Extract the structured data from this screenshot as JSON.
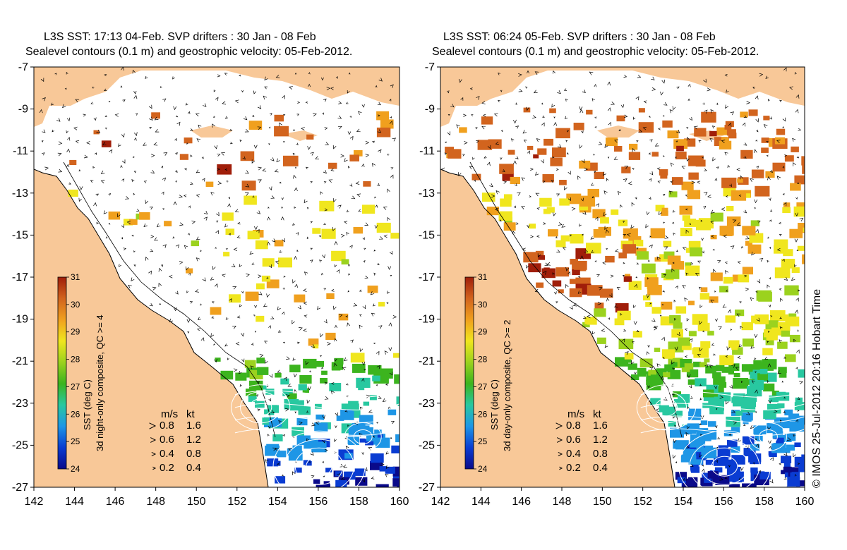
{
  "panels": [
    {
      "id": "left",
      "title_line1": "L3S SST: 17:13 04-Feb. SVP drifters : 30 Jan - 08 Feb",
      "title_line2": "Sealevel contours (0.1 m) and geostrophic velocity: 05-Feb-2012.",
      "colorbar_label": "SST (deg C)",
      "colorbar_sublabel": "3d night-only composite, QC >= 4",
      "coverage": "night"
    },
    {
      "id": "right",
      "title_line1": "L3S SST: 06:24 05-Feb. SVP drifters : 30 Jan - 08 Feb",
      "title_line2": "Sealevel contours (0.1 m) and geostrophic velocity: 05-Feb-2012.",
      "colorbar_label": "SST (deg C)",
      "colorbar_sublabel": "3d day-only composite, QC >= 2",
      "coverage": "day"
    }
  ],
  "axes": {
    "lon_ticks": [
      "142",
      "144",
      "146",
      "148",
      "150",
      "152",
      "154",
      "156",
      "158",
      "160"
    ],
    "lat_ticks": [
      "-7",
      "-9",
      "-11",
      "-13",
      "-15",
      "-17",
      "-19",
      "-21",
      "-23",
      "-25",
      "-27"
    ],
    "lon_range": [
      142,
      160
    ],
    "lat_range": [
      -27,
      -7
    ]
  },
  "colorbar": {
    "ticks": [
      "31",
      "30",
      "29",
      "28",
      "27",
      "26",
      "25",
      "24"
    ],
    "range": [
      24,
      31
    ],
    "colors": [
      "#0a0a8a",
      "#0a3cd2",
      "#1e96e6",
      "#28c8a0",
      "#3cb41e",
      "#9bd21e",
      "#f0e61e",
      "#f0a01e",
      "#d2641e",
      "#a01e0a"
    ]
  },
  "speed_legend": {
    "header_ms": "m/s",
    "header_kt": "kt",
    "rows": [
      {
        "ms": "0.8",
        "kt": "1.6"
      },
      {
        "ms": "0.6",
        "kt": "1.2"
      },
      {
        "ms": "0.4",
        "kt": "0.8"
      },
      {
        "ms": "0.2",
        "kt": "0.4"
      }
    ]
  },
  "credit": "© IMOS 25-Jul-2012 20:16 Hobart Time",
  "colors": {
    "land": "#f8c898",
    "sea_nodata": "#ffffff",
    "vector": "#000000",
    "contour": "#ffffff"
  }
}
